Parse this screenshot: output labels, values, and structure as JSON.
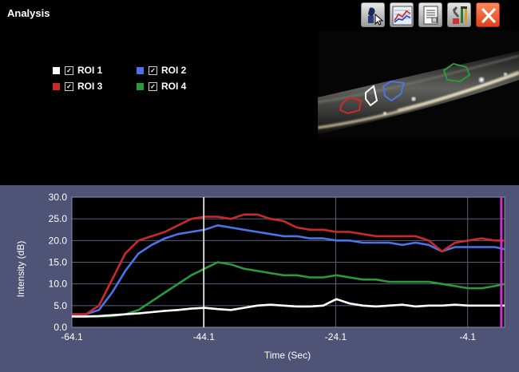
{
  "app": {
    "title": "Analysis"
  },
  "toolbar": {
    "buttons": [
      {
        "name": "wizard-button",
        "icon": "wizard-cursor-icon"
      },
      {
        "name": "chart-button",
        "icon": "line-chart-icon"
      },
      {
        "name": "report-button",
        "icon": "report-document-icon"
      },
      {
        "name": "tools-button",
        "icon": "tools-icon"
      },
      {
        "name": "close-button",
        "icon": "close-icon"
      }
    ]
  },
  "legend": {
    "items": [
      {
        "label": "ROI 1",
        "color": "#ffffff",
        "checked": true
      },
      {
        "label": "ROI 2",
        "color": "#4a74e8",
        "checked": true
      },
      {
        "label": "ROI 3",
        "color": "#cc2a2a",
        "checked": true
      },
      {
        "label": "ROI 4",
        "color": "#2a9a3a",
        "checked": true
      }
    ]
  },
  "chart_data": {
    "type": "line",
    "title": "",
    "xlabel": "Time (Sec)",
    "ylabel": "Intensity (dB)",
    "xlim": [
      -64.1,
      1.5
    ],
    "ylim": [
      0,
      30
    ],
    "xticks": [
      "-64.1",
      "-44.1",
      "-24.1",
      "-4.1"
    ],
    "yticks": [
      "0.0",
      "5.0",
      "10.0",
      "15.0",
      "20.0",
      "25.0",
      "30.0"
    ],
    "grid": true,
    "markers": [
      {
        "x": -44.1,
        "color": "#ffffff"
      },
      {
        "x": 1.0,
        "color": "#cc33cc"
      }
    ],
    "x": [
      -64.1,
      -62,
      -60,
      -58,
      -56,
      -54,
      -52,
      -50,
      -48,
      -46,
      -44,
      -42,
      -40,
      -38,
      -36,
      -34,
      -32,
      -30,
      -28,
      -26,
      -24,
      -22,
      -20,
      -18,
      -16,
      -14,
      -12,
      -10,
      -8,
      -6,
      -4,
      -2,
      0,
      1.5
    ],
    "series": [
      {
        "name": "ROI 1",
        "color": "#ffffff",
        "values": [
          2.5,
          2.5,
          2.6,
          2.8,
          3.0,
          3.2,
          3.5,
          3.8,
          4.0,
          4.3,
          4.5,
          4.2,
          4.0,
          4.5,
          5.0,
          5.2,
          5.0,
          4.8,
          4.8,
          5.0,
          6.5,
          5.5,
          5.0,
          4.8,
          5.0,
          5.2,
          4.8,
          5.0,
          5.0,
          5.2,
          5.0,
          5.0,
          5.0,
          5.0
        ]
      },
      {
        "name": "ROI 2",
        "color": "#4a74e8",
        "values": [
          3.0,
          3.0,
          4.0,
          8.0,
          13.0,
          17.0,
          19.0,
          20.5,
          21.5,
          22.0,
          22.5,
          23.5,
          23.0,
          22.5,
          22.0,
          21.5,
          21.0,
          21.0,
          20.5,
          20.5,
          20.0,
          20.0,
          19.5,
          19.5,
          19.5,
          19.0,
          19.5,
          19.0,
          17.5,
          18.5,
          18.5,
          18.5,
          18.5,
          18.0
        ]
      },
      {
        "name": "ROI 3",
        "color": "#cc2a2a",
        "values": [
          3.0,
          3.0,
          5.0,
          11.0,
          17.0,
          20.0,
          21.0,
          22.0,
          23.5,
          25.0,
          25.5,
          25.5,
          25.0,
          26.0,
          26.0,
          25.0,
          24.5,
          23.0,
          22.5,
          22.5,
          22.0,
          22.0,
          21.5,
          21.0,
          21.0,
          21.0,
          21.0,
          20.0,
          17.5,
          19.5,
          20.0,
          20.5,
          20.0,
          20.0
        ]
      },
      {
        "name": "ROI 4",
        "color": "#2a9a3a",
        "values": [
          2.5,
          2.5,
          2.5,
          2.6,
          3.0,
          4.0,
          6.0,
          8.0,
          10.0,
          12.0,
          13.5,
          15.0,
          14.5,
          13.5,
          13.0,
          12.5,
          12.0,
          12.0,
          11.5,
          11.5,
          12.0,
          11.5,
          11.0,
          11.0,
          10.5,
          10.5,
          10.5,
          10.5,
          10.0,
          9.5,
          9.0,
          9.0,
          9.5,
          10.0
        ]
      }
    ]
  }
}
